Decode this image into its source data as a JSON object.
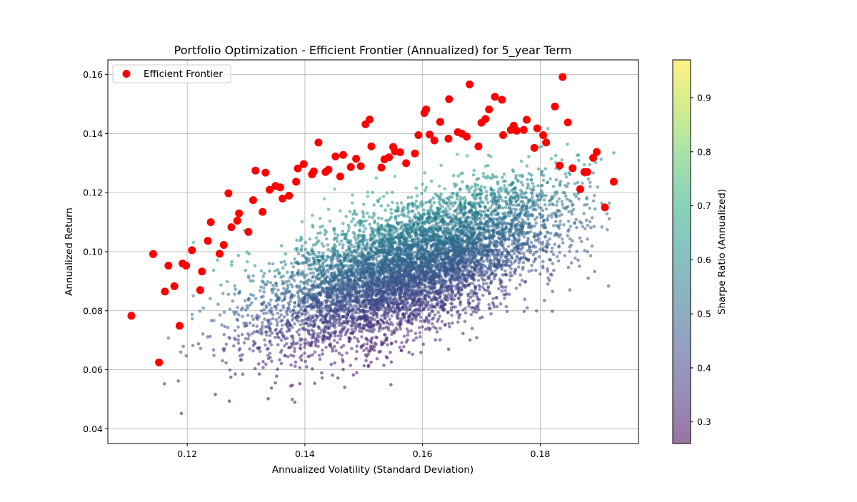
{
  "chart_data": {
    "type": "scatter",
    "title": "Portfolio Optimization - Efficient Frontier (Annualized) for 5_year Term",
    "xlabel": "Annualized Volatility (Standard Deviation)",
    "ylabel": "Annualized Return",
    "xlim": [
      0.1065,
      0.1967
    ],
    "ylim": [
      0.035,
      0.165
    ],
    "x_ticks": [
      "0.12",
      "0.14",
      "0.16",
      "0.18"
    ],
    "x_tick_values": [
      0.12,
      0.14,
      0.16,
      0.18
    ],
    "y_ticks": [
      "0.04",
      "0.06",
      "0.08",
      "0.10",
      "0.12",
      "0.14",
      "0.16"
    ],
    "y_tick_values": [
      0.04,
      0.06,
      0.08,
      0.1,
      0.12,
      0.14,
      0.16
    ],
    "grid": true,
    "colorbar": {
      "label": "Sharpe Ratio (Annualized)",
      "range": [
        0.26,
        0.97
      ],
      "ticks": [
        "0.3",
        "0.4",
        "0.5",
        "0.6",
        "0.7",
        "0.8",
        "0.9"
      ],
      "tick_values": [
        0.3,
        0.4,
        0.5,
        0.6,
        0.7,
        0.8,
        0.9
      ],
      "colormap": "viridis"
    },
    "simulated_portfolios": {
      "approx_count": 20000,
      "volatility_range": [
        0.114,
        0.193
      ],
      "return_range": [
        0.041,
        0.149
      ],
      "center": [
        0.158,
        0.095
      ],
      "color_by": "sharpe_ratio",
      "marker_opacity": 0.55
    },
    "legend": {
      "position": "top-left",
      "entries": [
        "Efficient Frontier"
      ]
    },
    "series": [
      {
        "name": "Efficient Frontier",
        "color": "#ff0000",
        "points": [
          [
            0.1105,
            0.0783
          ],
          [
            0.1142,
            0.0992
          ],
          [
            0.1152,
            0.0625
          ],
          [
            0.1162,
            0.0865
          ],
          [
            0.1168,
            0.0953
          ],
          [
            0.1178,
            0.0883
          ],
          [
            0.1187,
            0.0749
          ],
          [
            0.1192,
            0.096
          ],
          [
            0.1198,
            0.0953
          ],
          [
            0.1208,
            0.1005
          ],
          [
            0.1222,
            0.087
          ],
          [
            0.1225,
            0.0933
          ],
          [
            0.1235,
            0.1037
          ],
          [
            0.124,
            0.11
          ],
          [
            0.1255,
            0.0993
          ],
          [
            0.1262,
            0.1023
          ],
          [
            0.127,
            0.1198
          ],
          [
            0.1275,
            0.1083
          ],
          [
            0.1285,
            0.1105
          ],
          [
            0.1288,
            0.113
          ],
          [
            0.1304,
            0.1067
          ],
          [
            0.1312,
            0.1175
          ],
          [
            0.1316,
            0.1275
          ],
          [
            0.1328,
            0.1135
          ],
          [
            0.1333,
            0.1268
          ],
          [
            0.134,
            0.121
          ],
          [
            0.135,
            0.1223
          ],
          [
            0.1358,
            0.1218
          ],
          [
            0.1362,
            0.118
          ],
          [
            0.1373,
            0.119
          ],
          [
            0.1385,
            0.1237
          ],
          [
            0.1388,
            0.1282
          ],
          [
            0.1398,
            0.1297
          ],
          [
            0.1412,
            0.1262
          ],
          [
            0.1415,
            0.1272
          ],
          [
            0.1423,
            0.137
          ],
          [
            0.1435,
            0.127
          ],
          [
            0.144,
            0.1278
          ],
          [
            0.1452,
            0.1323
          ],
          [
            0.146,
            0.1255
          ],
          [
            0.1465,
            0.1328
          ],
          [
            0.1478,
            0.1287
          ],
          [
            0.1487,
            0.1315
          ],
          [
            0.1495,
            0.129
          ],
          [
            0.1503,
            0.1432
          ],
          [
            0.151,
            0.1448
          ],
          [
            0.1513,
            0.1357
          ],
          [
            0.153,
            0.1285
          ],
          [
            0.1535,
            0.1313
          ],
          [
            0.1543,
            0.132
          ],
          [
            0.155,
            0.1355
          ],
          [
            0.1553,
            0.134
          ],
          [
            0.1562,
            0.1337
          ],
          [
            0.1572,
            0.13
          ],
          [
            0.1587,
            0.1333
          ],
          [
            0.1593,
            0.1395
          ],
          [
            0.1603,
            0.147
          ],
          [
            0.1606,
            0.1482
          ],
          [
            0.1612,
            0.1397
          ],
          [
            0.162,
            0.1377
          ],
          [
            0.163,
            0.144
          ],
          [
            0.1644,
            0.1383
          ],
          [
            0.1645,
            0.1517
          ],
          [
            0.166,
            0.1405
          ],
          [
            0.1667,
            0.14
          ],
          [
            0.1675,
            0.139
          ],
          [
            0.168,
            0.1567
          ],
          [
            0.1695,
            0.1357
          ],
          [
            0.17,
            0.1437
          ],
          [
            0.1707,
            0.145
          ],
          [
            0.1713,
            0.1482
          ],
          [
            0.1723,
            0.1525
          ],
          [
            0.1735,
            0.1515
          ],
          [
            0.1737,
            0.1395
          ],
          [
            0.175,
            0.1413
          ],
          [
            0.1755,
            0.1427
          ],
          [
            0.176,
            0.141
          ],
          [
            0.1772,
            0.1413
          ],
          [
            0.1777,
            0.1447
          ],
          [
            0.179,
            0.1352
          ],
          [
            0.1795,
            0.1418
          ],
          [
            0.1805,
            0.1395
          ],
          [
            0.181,
            0.137
          ],
          [
            0.1825,
            0.1492
          ],
          [
            0.1833,
            0.1292
          ],
          [
            0.1838,
            0.1592
          ],
          [
            0.1847,
            0.1438
          ],
          [
            0.1855,
            0.1283
          ],
          [
            0.1868,
            0.1212
          ],
          [
            0.1875,
            0.127
          ],
          [
            0.188,
            0.127
          ],
          [
            0.189,
            0.1318
          ],
          [
            0.1896,
            0.1338
          ],
          [
            0.191,
            0.115
          ],
          [
            0.1925,
            0.1237
          ]
        ]
      }
    ]
  }
}
